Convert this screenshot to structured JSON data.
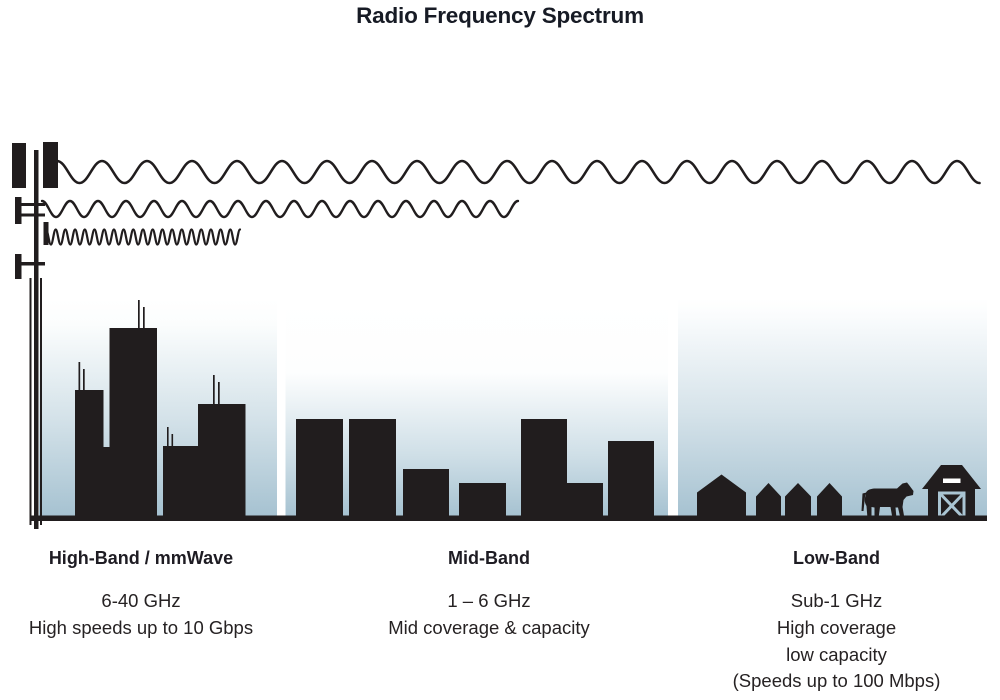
{
  "title": "Radio Frequency Spectrum",
  "colors": {
    "ink": "#211d1e",
    "sky_bottom": "#a6c2d1",
    "sky_top": "#ffffff"
  },
  "bands": [
    {
      "name": "High-Band / mmWave",
      "lines": [
        "6-40 GHz",
        "High speeds up to 10 Gbps"
      ]
    },
    {
      "name": "Mid-Band",
      "lines": [
        "1 – 6 GHz",
        "Mid coverage & capacity"
      ]
    },
    {
      "name": "Low-Band",
      "lines": [
        "Sub-1 GHz",
        "High coverage",
        "low capacity",
        "(Speeds up to 100 Mbps)"
      ]
    }
  ]
}
